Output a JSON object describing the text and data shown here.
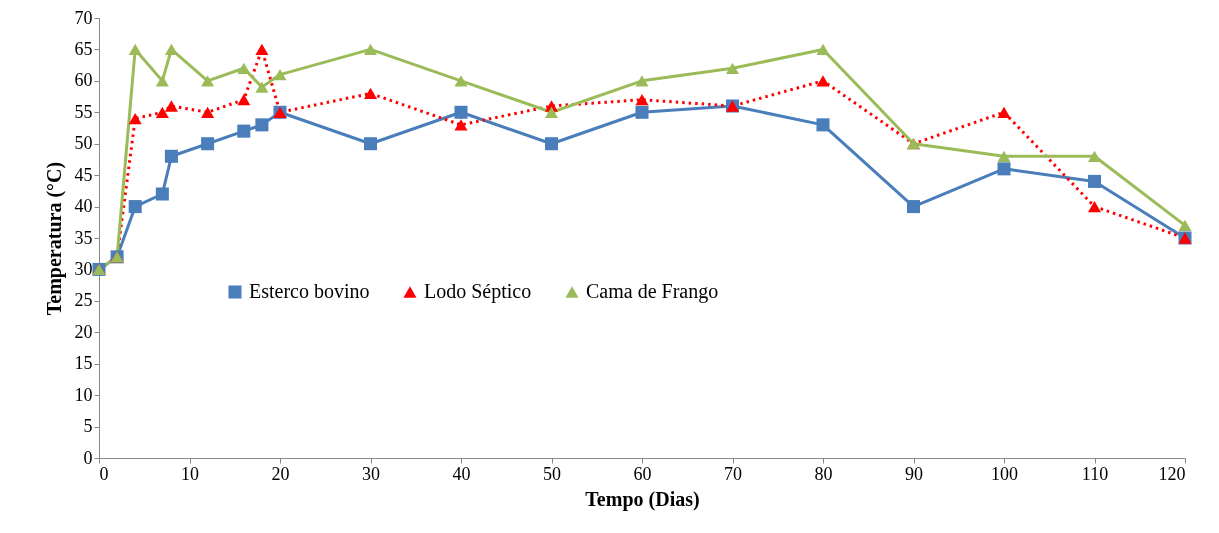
{
  "chart_data": {
    "type": "line",
    "xlabel": "Tempo (Dias)",
    "ylabel": "Temperatura (°C)",
    "x": [
      0,
      2,
      4,
      7,
      8,
      12,
      16,
      18,
      20,
      30,
      40,
      50,
      60,
      70,
      80,
      90,
      100,
      110,
      120
    ],
    "series": [
      {
        "name": "Esterco bovino",
        "color": "#4a7ebb",
        "marker": "square",
        "line_style": "solid",
        "values": [
          30,
          32,
          40,
          42,
          48,
          50,
          52,
          53,
          55,
          50,
          55,
          50,
          55,
          56,
          53,
          40,
          46,
          44,
          35
        ]
      },
      {
        "name": "Lodo Séptico",
        "color": "#ff0000",
        "marker": "triangle",
        "line_style": "dotted",
        "values": [
          30,
          32,
          54,
          55,
          56,
          55,
          57,
          65,
          55,
          58,
          53,
          56,
          57,
          56,
          60,
          50,
          55,
          40,
          35
        ]
      },
      {
        "name": "Cama de Frango",
        "color": "#9bbb59",
        "marker": "triangle",
        "line_style": "solid",
        "values": [
          30,
          32,
          65,
          60,
          65,
          60,
          62,
          59,
          61,
          65,
          60,
          55,
          60,
          62,
          65,
          50,
          48,
          48,
          37
        ]
      }
    ],
    "xlim": [
      0,
      120
    ],
    "xticks": [
      0,
      10,
      20,
      30,
      40,
      50,
      60,
      70,
      80,
      90,
      100,
      110,
      120
    ],
    "ylim": [
      0,
      70
    ],
    "yticks": [
      0,
      5,
      10,
      15,
      20,
      25,
      30,
      35,
      40,
      45,
      50,
      55,
      60,
      65,
      70
    ],
    "grid": false,
    "legend": "center"
  }
}
